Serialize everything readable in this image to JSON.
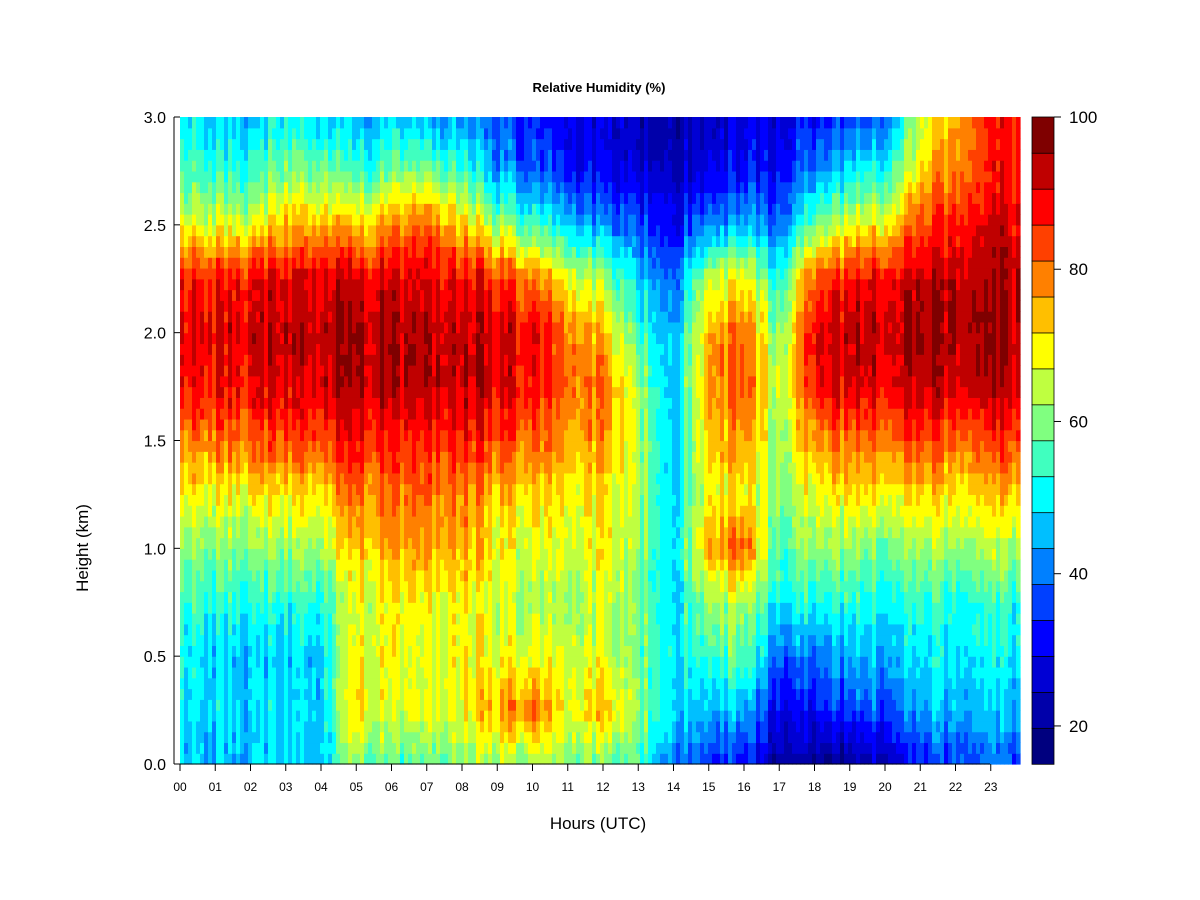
{
  "chart_data": {
    "type": "heatmap",
    "title": "Relative Humidity (%)",
    "xlabel": "Hours (UTC)",
    "ylabel": "Height (km)",
    "x_ticks": [
      "00",
      "01",
      "02",
      "03",
      "04",
      "05",
      "06",
      "07",
      "08",
      "09",
      "10",
      "11",
      "12",
      "13",
      "14",
      "15",
      "16",
      "17",
      "18",
      "19",
      "20",
      "21",
      "22",
      "23"
    ],
    "y_ticks": [
      "0.0",
      "0.5",
      "1.0",
      "1.5",
      "2.0",
      "2.5",
      "3.0"
    ],
    "xlim": [
      0,
      23.85
    ],
    "ylim": [
      0,
      3.0
    ],
    "colorbar": {
      "min": 15,
      "max": 100,
      "step": 5,
      "tick_values": [
        20,
        40,
        60,
        80,
        100
      ],
      "tick_labels": [
        "20",
        "40",
        "60",
        "80",
        "100"
      ],
      "colors": [
        "#00007F",
        "#0000AA",
        "#0000D4",
        "#0000FF",
        "#0040FF",
        "#0080FF",
        "#00BFFF",
        "#00FFFF",
        "#40FFBF",
        "#80FF80",
        "#BFFF40",
        "#FFFF00",
        "#FFBF00",
        "#FF8000",
        "#FF4000",
        "#FF0000",
        "#BF0000",
        "#7F0000"
      ]
    },
    "heights_km": [
      0.0,
      0.25,
      0.5,
      0.75,
      1.0,
      1.25,
      1.5,
      1.75,
      2.0,
      2.25,
      2.5,
      2.75,
      3.0
    ],
    "hours_utc": [
      0,
      1,
      2,
      3,
      4,
      5,
      6,
      7,
      8,
      9,
      10,
      11,
      12,
      13,
      14,
      15,
      16,
      17,
      18,
      19,
      20,
      21,
      22,
      23,
      23.85
    ],
    "rh_by_hour": [
      [
        50,
        52,
        53,
        58,
        64,
        72,
        83,
        92,
        95,
        92,
        72,
        58,
        52
      ],
      [
        48,
        50,
        50,
        56,
        63,
        73,
        84,
        93,
        95,
        92,
        70,
        56,
        50
      ],
      [
        47,
        49,
        48,
        55,
        62,
        72,
        85,
        93,
        96,
        93,
        70,
        55,
        48
      ],
      [
        49,
        50,
        49,
        55,
        64,
        74,
        87,
        95,
        97,
        95,
        78,
        62,
        52
      ],
      [
        50,
        51,
        50,
        56,
        66,
        76,
        88,
        97,
        99,
        96,
        80,
        63,
        50
      ],
      [
        62,
        75,
        72,
        68,
        76,
        82,
        92,
        98,
        99,
        95,
        75,
        55,
        45
      ],
      [
        58,
        70,
        72,
        73,
        80,
        84,
        90,
        98,
        99,
        95,
        82,
        62,
        48
      ],
      [
        60,
        70,
        70,
        72,
        80,
        85,
        90,
        98,
        99,
        95,
        85,
        63,
        46
      ],
      [
        64,
        73,
        74,
        73,
        80,
        84,
        92,
        99,
        99,
        95,
        78,
        58,
        45
      ],
      [
        65,
        80,
        70,
        69,
        72,
        76,
        88,
        95,
        96,
        90,
        65,
        45,
        38
      ],
      [
        65,
        85,
        72,
        66,
        70,
        76,
        85,
        93,
        94,
        85,
        58,
        40,
        34
      ],
      [
        62,
        70,
        68,
        64,
        68,
        72,
        78,
        84,
        82,
        70,
        48,
        33,
        30
      ],
      [
        60,
        78,
        70,
        68,
        72,
        74,
        80,
        84,
        78,
        64,
        44,
        30,
        27
      ],
      [
        58,
        65,
        62,
        62,
        64,
        66,
        68,
        66,
        58,
        50,
        38,
        28,
        25
      ],
      [
        42,
        50,
        52,
        50,
        50,
        49,
        48,
        47,
        46,
        40,
        32,
        25,
        22
      ],
      [
        36,
        48,
        58,
        66,
        80,
        74,
        78,
        82,
        80,
        70,
        44,
        30,
        27
      ],
      [
        32,
        46,
        60,
        64,
        86,
        72,
        80,
        86,
        84,
        72,
        46,
        32,
        29
      ],
      [
        22,
        30,
        40,
        52,
        58,
        62,
        64,
        66,
        62,
        54,
        40,
        32,
        28
      ],
      [
        20,
        33,
        42,
        55,
        65,
        72,
        82,
        93,
        95,
        88,
        62,
        44,
        34
      ],
      [
        21,
        36,
        46,
        55,
        64,
        73,
        84,
        95,
        97,
        92,
        70,
        50,
        36
      ],
      [
        25,
        40,
        48,
        55,
        62,
        74,
        86,
        96,
        98,
        95,
        74,
        56,
        42
      ],
      [
        32,
        45,
        50,
        55,
        64,
        74,
        86,
        97,
        99,
        97,
        86,
        74,
        66
      ],
      [
        38,
        48,
        53,
        56,
        65,
        75,
        86,
        97,
        100,
        99,
        93,
        85,
        80
      ],
      [
        40,
        48,
        52,
        56,
        66,
        76,
        88,
        98,
        100,
        99,
        95,
        90,
        90
      ],
      [
        38,
        46,
        52,
        55,
        66,
        77,
        88,
        97,
        99,
        99,
        95,
        92,
        92
      ]
    ]
  }
}
